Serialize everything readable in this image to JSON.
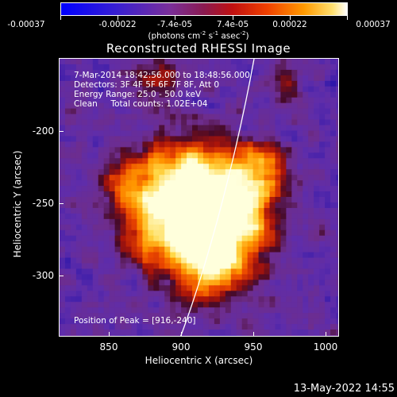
{
  "colorbar": {
    "ticks": [
      "-0.00037",
      "-0.00022",
      "-7.4e-05",
      "7.4e-05",
      "0.00022",
      "0.00037"
    ],
    "units_text": "(photons cm<sup>-2</sup> s<sup>-1</sup> asec<sup>-2</sup>)"
  },
  "title": "Reconstructed RHESSI Image",
  "info": {
    "time_line": "7-Mar-2014 18:42:56.000 to 18:48:56.000",
    "detectors_line": "Detectors: 3F 4F 5F 6F 7F 8F, Att 0",
    "energy_line": "Energy Range: 25.0 - 50.0 keV",
    "clean_line": "Clean     Total counts: 1.02E+04",
    "peak_line": "Position of Peak = [916,-240]"
  },
  "axes": {
    "xlabel": "Heliocentric X (arcsec)",
    "ylabel": "Heliocentric Y (arcsec)",
    "xticks": [
      "850",
      "900",
      "950",
      "1000"
    ],
    "yticks": [
      "-200",
      "-250",
      "-300"
    ]
  },
  "timestamp": "13-May-2022 14:55",
  "colors": {
    "background": "#000000",
    "colormap": [
      "#0000ff",
      "#6a2ca0",
      "#7a2f8a",
      "#a01010",
      "#e04000",
      "#ff9000",
      "#ffe060",
      "#ffffff"
    ]
  }
}
